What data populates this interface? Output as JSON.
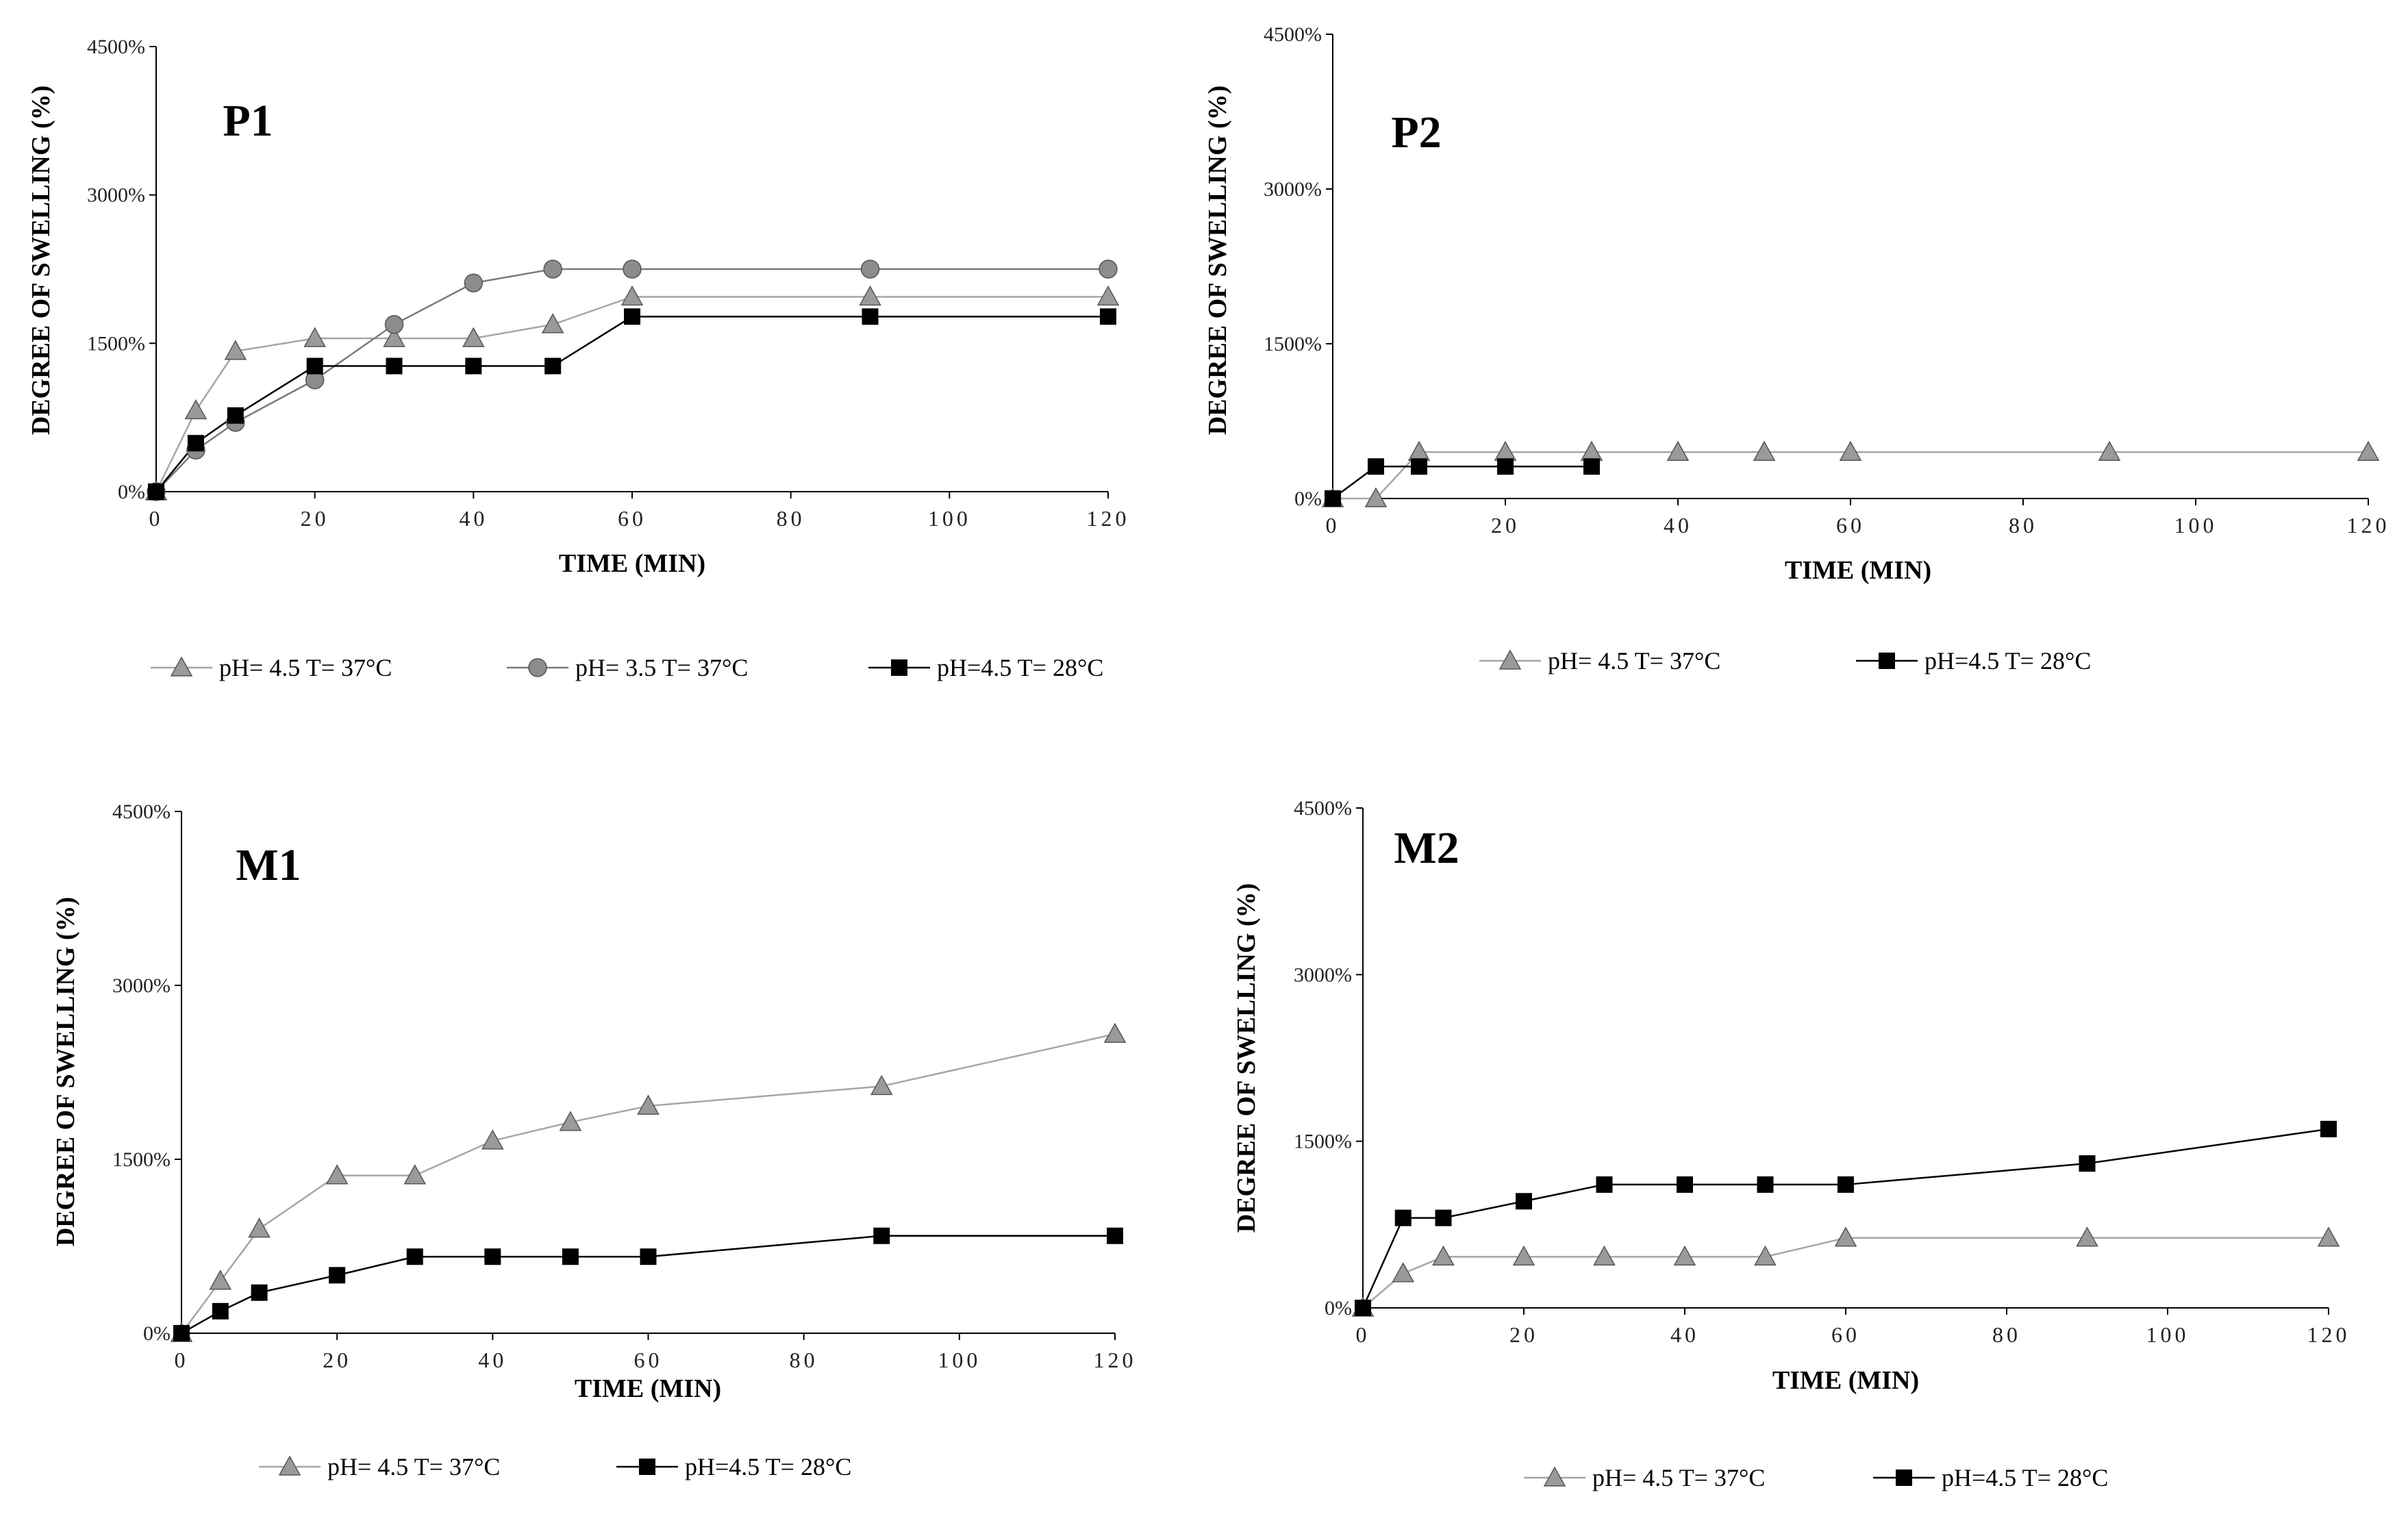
{
  "colors": {
    "axis": "#000000",
    "series_triangle_fill": "#9a9a9a",
    "series_triangle_line": "#a6a6a6",
    "series_circle_fill": "#8c8c8c",
    "series_circle_line": "#7a7a7a",
    "series_square_fill": "#000000",
    "series_square_line": "#000000"
  },
  "chart_data": [
    {
      "type": "line",
      "title": "P1",
      "xlabel": "TIME  (MIN)",
      "ylabel": "DEGREE  OF SWELLING  (%)",
      "xlim": [
        0,
        120
      ],
      "ylim": [
        0,
        4500
      ],
      "xticks": [
        "0",
        "20",
        "40",
        "60",
        "80",
        "100",
        "120"
      ],
      "yticks": [
        "0%",
        "1500%",
        "3000%",
        "4500%"
      ],
      "legend_position": "bottom",
      "series": [
        {
          "name": "pH= 4.5  T= 37°C",
          "marker": "triangle",
          "x": [
            0,
            5,
            10,
            20,
            30,
            40,
            50,
            60,
            90,
            120
          ],
          "y": [
            0,
            820,
            1420,
            1550,
            1550,
            1550,
            1690,
            1970,
            1970,
            1970
          ]
        },
        {
          "name": "pH= 3.5  T= 37°C",
          "marker": "circle",
          "x": [
            0,
            5,
            10,
            20,
            30,
            40,
            50,
            60,
            90,
            120
          ],
          "y": [
            0,
            420,
            700,
            1130,
            1690,
            2110,
            2250,
            2250,
            2250,
            2250
          ]
        },
        {
          "name": "pH=4.5 T= 28°C",
          "marker": "square",
          "x": [
            0,
            5,
            10,
            20,
            30,
            40,
            50,
            60,
            90,
            120
          ],
          "y": [
            0,
            490,
            770,
            1270,
            1270,
            1270,
            1270,
            1770,
            1770,
            1770
          ]
        }
      ]
    },
    {
      "type": "line",
      "title": "P2",
      "xlabel": "TIME  (MIN)",
      "ylabel": "DEGREE  OF SWELLING  (%)",
      "xlim": [
        0,
        120
      ],
      "ylim": [
        0,
        4500
      ],
      "xticks": [
        "0",
        "20",
        "40",
        "60",
        "80",
        "100",
        "120"
      ],
      "yticks": [
        "0%",
        "1500%",
        "3000%",
        "4500%"
      ],
      "legend_position": "bottom",
      "series": [
        {
          "name": "pH= 4.5  T= 37°C",
          "marker": "triangle",
          "x": [
            0,
            5,
            10,
            20,
            30,
            40,
            50,
            60,
            90,
            120
          ],
          "y": [
            0,
            0,
            450,
            450,
            450,
            450,
            450,
            450,
            450,
            450
          ]
        },
        {
          "name": "pH=4.5 T= 28°C",
          "marker": "square",
          "x": [
            0,
            5,
            10,
            20,
            30
          ],
          "y": [
            0,
            310,
            310,
            310,
            310
          ]
        }
      ]
    },
    {
      "type": "line",
      "title": "M1",
      "xlabel": "TIME  (MIN)",
      "ylabel": "DEGREE  OF SWELLING  (%)",
      "xlim": [
        0,
        120
      ],
      "ylim": [
        0,
        4500
      ],
      "xticks": [
        "0",
        "20",
        "40",
        "60",
        "80",
        "100",
        "120"
      ],
      "yticks": [
        "0%",
        "1500%",
        "3000%",
        "4500%"
      ],
      "legend_position": "bottom",
      "series": [
        {
          "name": "pH= 4.5  T= 37°C",
          "marker": "triangle",
          "x": [
            0,
            5,
            10,
            20,
            30,
            40,
            50,
            60,
            90,
            120
          ],
          "y": [
            0,
            450,
            900,
            1360,
            1360,
            1660,
            1820,
            1960,
            2130,
            2580
          ]
        },
        {
          "name": "pH=4.5 T= 28°C",
          "marker": "square",
          "x": [
            0,
            5,
            10,
            20,
            30,
            40,
            50,
            60,
            90,
            120
          ],
          "y": [
            0,
            190,
            350,
            500,
            660,
            660,
            660,
            660,
            840,
            840
          ]
        }
      ]
    },
    {
      "type": "line",
      "title": "M2",
      "xlabel": "TIME  (MIN)",
      "ylabel": "DEGREE  OF SWELLING  (%)",
      "xlim": [
        0,
        120
      ],
      "ylim": [
        0,
        4500
      ],
      "xticks": [
        "0",
        "20",
        "40",
        "60",
        "80",
        "100",
        "120"
      ],
      "yticks": [
        "0%",
        "1500%",
        "3000%",
        "4500%"
      ],
      "legend_position": "bottom",
      "series": [
        {
          "name": "pH= 4.5  T= 37°C",
          "marker": "triangle",
          "x": [
            0,
            5,
            10,
            20,
            30,
            40,
            50,
            60,
            90,
            120
          ],
          "y": [
            0,
            310,
            460,
            460,
            460,
            460,
            460,
            630,
            630,
            630
          ]
        },
        {
          "name": "pH=4.5 T= 28°C",
          "marker": "square",
          "x": [
            0,
            5,
            10,
            20,
            30,
            40,
            50,
            60,
            90,
            120
          ],
          "y": [
            0,
            810,
            810,
            960,
            1110,
            1110,
            1110,
            1110,
            1300,
            1610
          ]
        }
      ]
    }
  ]
}
